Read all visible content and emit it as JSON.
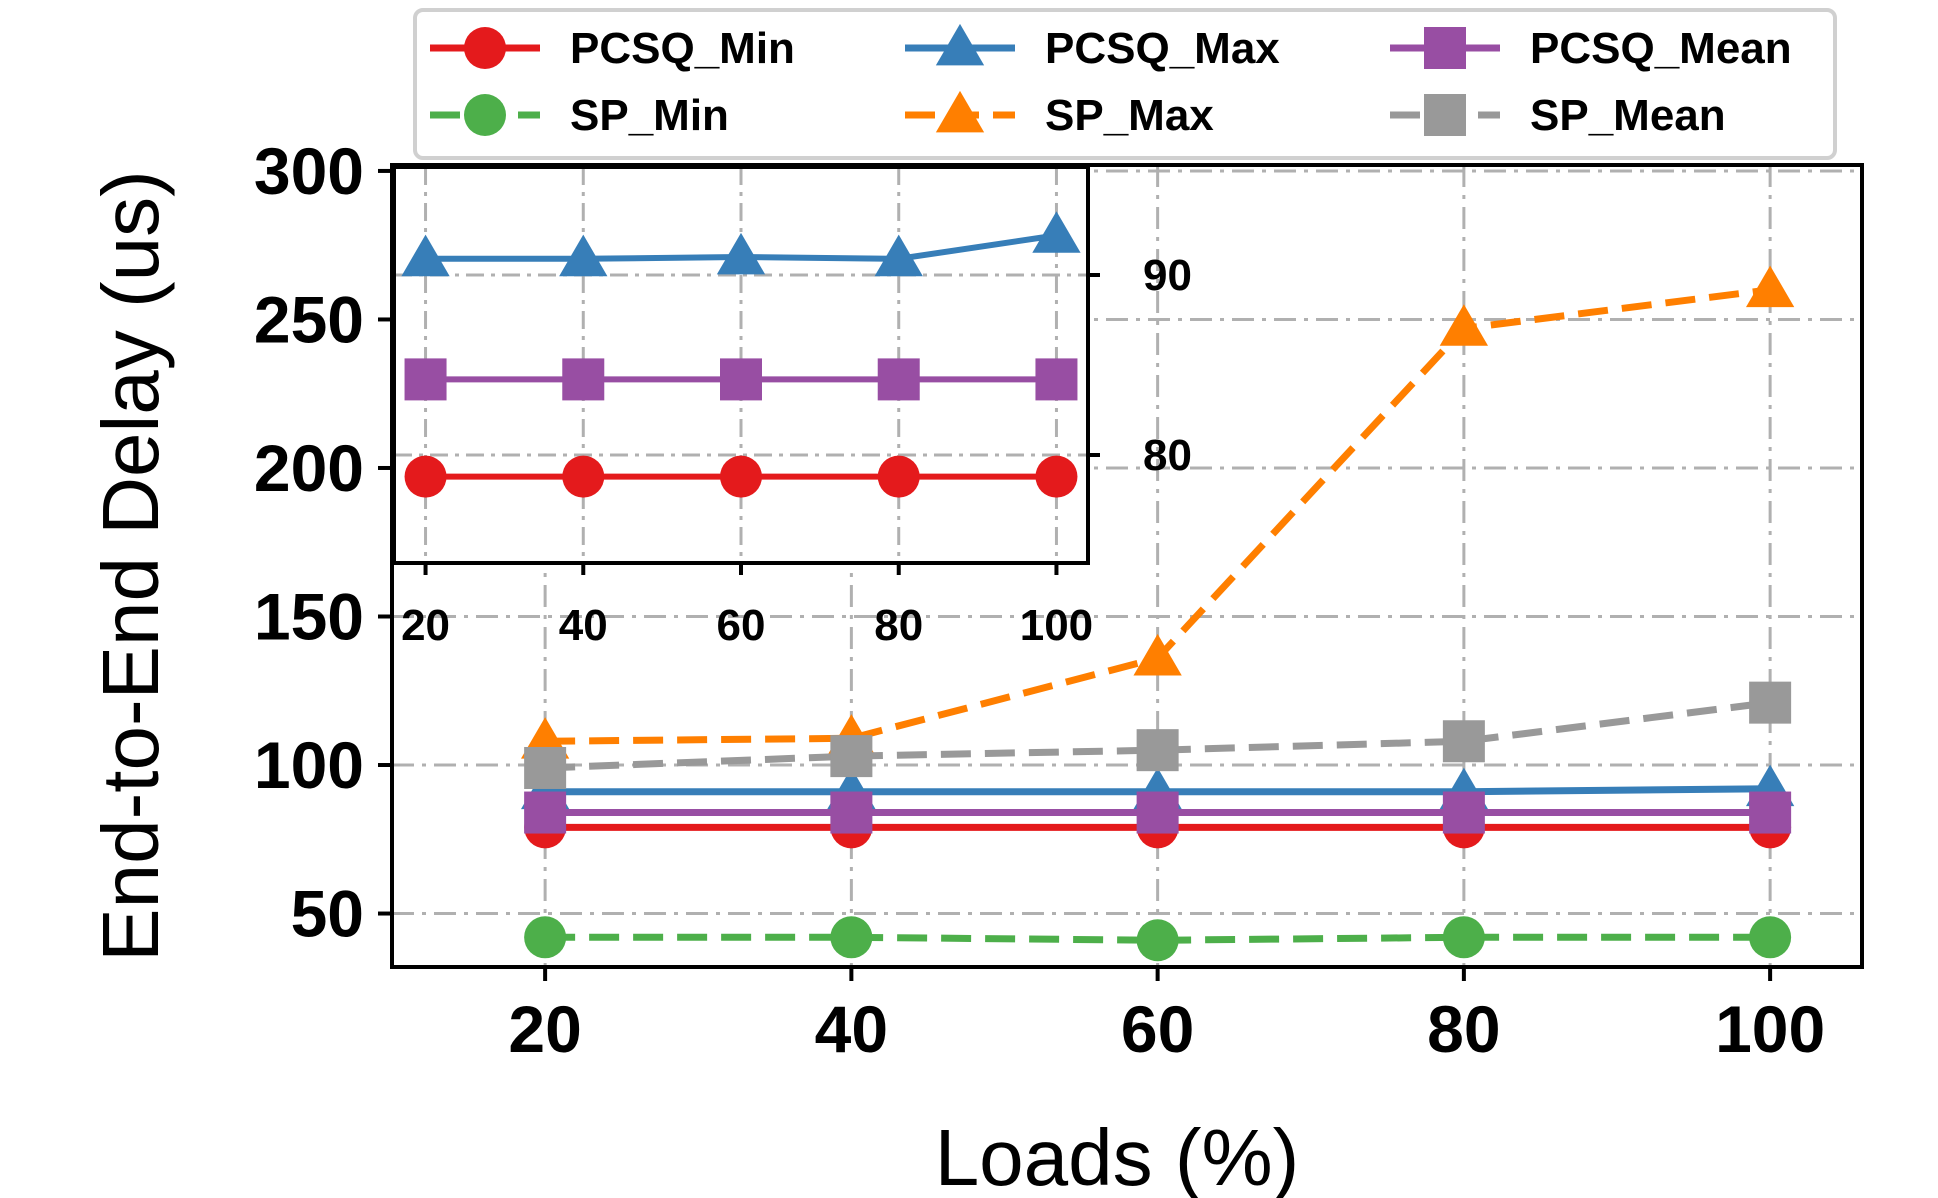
{
  "chart_data": {
    "type": "line",
    "title": "",
    "xlabel": "Loads (%)",
    "ylabel": "End-to-End Delay (us)",
    "x": [
      20,
      40,
      60,
      80,
      100
    ],
    "ylim": [
      32,
      302
    ],
    "yticks": [
      50,
      100,
      150,
      200,
      250,
      300
    ],
    "xticks": [
      20,
      40,
      60,
      80,
      100
    ],
    "grid": true,
    "legend_position": "top",
    "series": [
      {
        "name": "PCSQ_Min",
        "color": "#e41a1c",
        "marker": "circle",
        "dashed": false,
        "values": [
          79,
          79,
          79,
          79,
          79
        ]
      },
      {
        "name": "PCSQ_Max",
        "color": "#377eb8",
        "marker": "triangle",
        "dashed": false,
        "values": [
          91,
          91,
          91,
          91,
          92
        ]
      },
      {
        "name": "PCSQ_Mean",
        "color": "#984ea3",
        "marker": "square",
        "dashed": false,
        "values": [
          84,
          84,
          84,
          84,
          84
        ]
      },
      {
        "name": "SP_Min",
        "color": "#4daf4a",
        "marker": "circle",
        "dashed": true,
        "values": [
          42,
          42,
          41,
          42,
          42
        ]
      },
      {
        "name": "SP_Max",
        "color": "#ff7f00",
        "marker": "triangle",
        "dashed": true,
        "values": [
          108,
          109,
          136,
          247,
          260
        ]
      },
      {
        "name": "SP_Mean",
        "color": "#999999",
        "marker": "square",
        "dashed": true,
        "values": [
          99,
          103,
          105,
          108,
          121
        ]
      }
    ],
    "legend_order": [
      "PCSQ_Min",
      "PCSQ_Max",
      "PCSQ_Mean",
      "SP_Min",
      "SP_Max",
      "SP_Mean"
    ],
    "inset": {
      "x": [
        20,
        40,
        60,
        80,
        100
      ],
      "xticks": [
        20,
        40,
        60,
        80,
        100
      ],
      "yticks": [
        80,
        90
      ],
      "ylim": [
        74,
        96
      ],
      "series": [
        {
          "name": "PCSQ_Max",
          "color": "#377eb8",
          "marker": "triangle",
          "values": [
            90.9,
            90.9,
            91.0,
            90.9,
            92.2
          ]
        },
        {
          "name": "PCSQ_Mean",
          "color": "#984ea3",
          "marker": "square",
          "values": [
            84.2,
            84.2,
            84.2,
            84.2,
            84.2
          ]
        },
        {
          "name": "PCSQ_Min",
          "color": "#e41a1c",
          "marker": "circle",
          "values": [
            78.8,
            78.8,
            78.8,
            78.8,
            78.8
          ]
        }
      ]
    }
  }
}
